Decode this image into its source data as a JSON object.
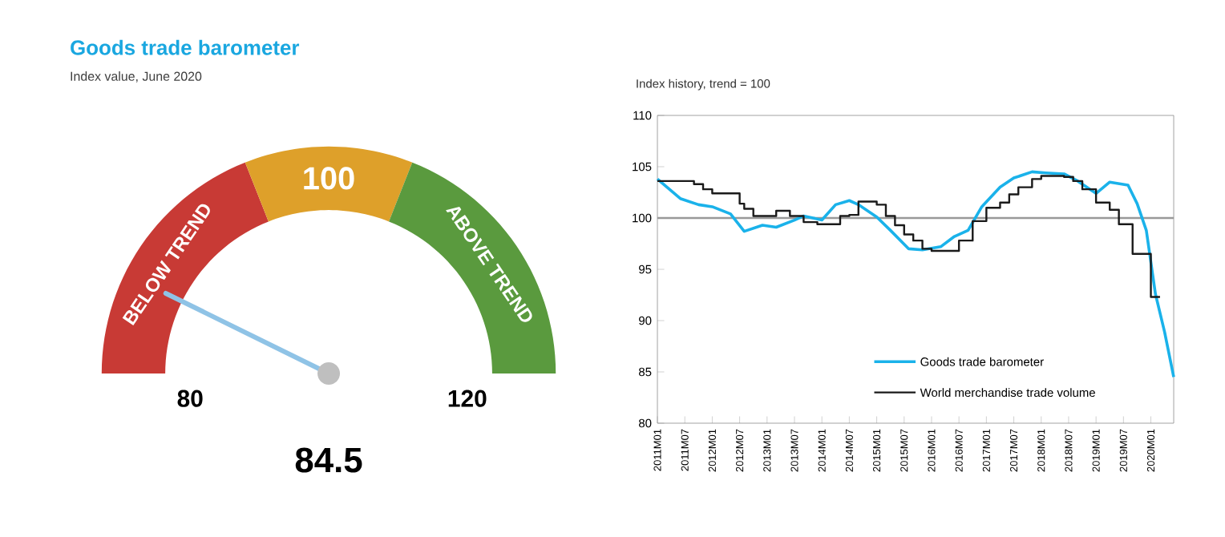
{
  "chart_data": [
    {
      "type": "donut",
      "title": "Goods trade barometer",
      "subtitle": "Index value, June 2020",
      "categories": [
        "BELOW TREND",
        "100",
        "ABOVE TREND"
      ],
      "values": [
        38,
        24,
        38
      ],
      "colors": [
        "#c83a35",
        "#dea02a",
        "#5a9a3e"
      ],
      "needle": "BELOW TREND",
      "annotations": [
        "80",
        "120",
        "84.5"
      ]
    },
    {
      "type": "line",
      "subtitle": "Index history, trend = 100",
      "xlim": [
        "2011-01",
        "2020-06"
      ],
      "ylim": [
        80,
        110
      ],
      "yticks": [
        80,
        85,
        90,
        95,
        100,
        105,
        110
      ],
      "xticks": [
        {
          "value": "2011-01",
          "label": "2011M01"
        },
        {
          "value": "2011-07",
          "label": "2011M07"
        },
        {
          "value": "2012-01",
          "label": "2012M01"
        },
        {
          "value": "2012-07",
          "label": "2012M07"
        },
        {
          "value": "2013-01",
          "label": "2013M01"
        },
        {
          "value": "2013-07",
          "label": "2013M07"
        },
        {
          "value": "2014-01",
          "label": "2014M01"
        },
        {
          "value": "2014-07",
          "label": "2014M07"
        },
        {
          "value": "2015-01",
          "label": "2015M01"
        },
        {
          "value": "2015-07",
          "label": "2015M07"
        },
        {
          "value": "2016-01",
          "label": "2016M01"
        },
        {
          "value": "2016-07",
          "label": "2016M07"
        },
        {
          "value": "2017-01",
          "label": "2017M01"
        },
        {
          "value": "2017-07",
          "label": "2017M07"
        },
        {
          "value": "2018-01",
          "label": "2018M01"
        },
        {
          "value": "2018-07",
          "label": "2018M07"
        },
        {
          "value": "2019-01",
          "label": "2019M01"
        },
        {
          "value": "2019-07",
          "label": "2019M07"
        },
        {
          "value": "2020-01",
          "label": "2020M01"
        }
      ],
      "ref_lines": [
        {
          "axis": "y",
          "value": 100,
          "color": "#999999"
        }
      ],
      "legend": "bottom right",
      "series": [
        {
          "name": "Goods trade barometer",
          "color": "#1ab2ea",
          "x": [
            "2011-01",
            "2011-06",
            "2011-10",
            "2012-01",
            "2012-05",
            "2012-08",
            "2012-12",
            "2013-03",
            "2013-07",
            "2013-09",
            "2014-01",
            "2014-04",
            "2014-07",
            "2014-09",
            "2015-01",
            "2015-04",
            "2015-08",
            "2015-11",
            "2016-03",
            "2016-06",
            "2016-09",
            "2016-12",
            "2017-04",
            "2017-07",
            "2017-11",
            "2018-02",
            "2018-06",
            "2018-09",
            "2019-01",
            "2019-04",
            "2019-08",
            "2019-10",
            "2019-12",
            "2020-02",
            "2020-04",
            "2020-06"
          ],
          "values": [
            103.8,
            101.9,
            101.3,
            101.1,
            100.4,
            98.7,
            99.3,
            99.1,
            99.8,
            100.2,
            99.8,
            101.3,
            101.7,
            101.3,
            100.1,
            98.8,
            97.0,
            96.9,
            97.2,
            98.2,
            98.8,
            101.1,
            103.0,
            103.9,
            104.5,
            104.4,
            104.3,
            103.6,
            102.4,
            103.5,
            103.2,
            101.4,
            98.8,
            92.6,
            88.9,
            84.5
          ]
        },
        {
          "name": "World merchandise trade volume",
          "color": "#1a1a1a",
          "type": "step",
          "x": [
            "2011-01",
            "2011-09",
            "2011-11",
            "2012-01",
            "2012-07",
            "2012-08",
            "2012-10",
            "2013-03",
            "2013-06",
            "2013-09",
            "2013-12",
            "2014-05",
            "2014-07",
            "2014-09",
            "2015-01",
            "2015-03",
            "2015-05",
            "2015-07",
            "2015-09",
            "2015-11",
            "2016-01",
            "2016-07",
            "2016-10",
            "2017-01",
            "2017-04",
            "2017-06",
            "2017-08",
            "2017-11",
            "2018-01",
            "2018-06",
            "2018-08",
            "2018-10",
            "2019-01",
            "2019-04",
            "2019-06",
            "2019-09",
            "2020-01",
            "2020-03"
          ],
          "values": [
            103.6,
            103.3,
            102.8,
            102.4,
            101.4,
            100.9,
            100.2,
            100.7,
            100.2,
            99.6,
            99.4,
            100.2,
            100.3,
            101.6,
            101.3,
            100.2,
            99.3,
            98.4,
            97.8,
            97.0,
            96.8,
            97.8,
            99.7,
            101.0,
            101.5,
            102.3,
            103.0,
            103.8,
            104.1,
            104.0,
            103.6,
            102.8,
            101.5,
            100.8,
            99.4,
            96.5,
            92.3,
            92.3
          ]
        }
      ]
    }
  ]
}
